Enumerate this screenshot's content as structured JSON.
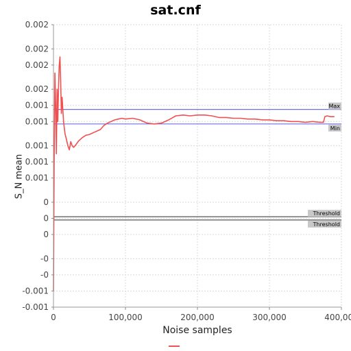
{
  "chart_data": {
    "type": "line",
    "title": "sat.cnf",
    "xlabel": "Noise samples",
    "ylabel": "S_N mean",
    "xlim": [
      0,
      400000
    ],
    "ylim": [
      -0.0011,
      0.0024
    ],
    "x_ticks": [
      0,
      100000,
      200000,
      300000,
      400000
    ],
    "x_tick_labels": [
      "0",
      "100,000",
      "200,000",
      "300,000",
      "400,000"
    ],
    "y_ticks": [
      0.0024,
      0.0021,
      0.0019,
      0.0016,
      0.0014,
      0.0012,
      0.0009,
      0.0007,
      0.0005,
      0.0002,
      0.0,
      -0.0002,
      -0.0005,
      -0.0007,
      -0.0009,
      -0.0011
    ],
    "y_tick_labels": [
      "0.002",
      "0.002",
      "0.002",
      "0.002",
      "0.001",
      "0.001",
      "0.001",
      "0.001",
      "0.001",
      "0",
      "0",
      "0",
      "-0",
      "-0",
      "-0.001",
      "-0.001"
    ],
    "reference_lines": [
      {
        "label": "Max",
        "value": 0.00135,
        "color": "#6f6fe8"
      },
      {
        "label": "Min",
        "value": 0.00117,
        "color": "#6f6fe8"
      },
      {
        "label": "Threshold",
        "value": 2e-05,
        "color": "#555555"
      },
      {
        "label": "Threshold",
        "value": -2e-05,
        "color": "#555555"
      }
    ],
    "series": [
      {
        "color": "#f05050",
        "x": [
          0,
          1000,
          2000,
          3000,
          4000,
          5000,
          6000,
          7000,
          8000,
          9000,
          10000,
          11000,
          12000,
          14000,
          16000,
          18000,
          20000,
          22000,
          24000,
          26000,
          28000,
          30000,
          35000,
          40000,
          45000,
          50000,
          55000,
          60000,
          65000,
          70000,
          75000,
          80000,
          85000,
          90000,
          95000,
          100000,
          110000,
          120000,
          130000,
          140000,
          150000,
          160000,
          170000,
          180000,
          190000,
          200000,
          210000,
          220000,
          230000,
          240000,
          250000,
          260000,
          270000,
          280000,
          290000,
          300000,
          310000,
          320000,
          330000,
          340000,
          350000,
          360000,
          370000,
          375000,
          377000,
          380000,
          385000,
          390000
        ],
        "y": [
          -0.0009,
          0.0007,
          0.0018,
          0.0014,
          0.0008,
          0.0016,
          0.0012,
          0.0016,
          0.0019,
          0.002,
          0.0017,
          0.0013,
          0.0015,
          0.0012,
          0.00105,
          0.00098,
          0.0009,
          0.00085,
          0.00095,
          0.0009,
          0.00088,
          0.0009,
          0.00096,
          0.001,
          0.00103,
          0.00104,
          0.00106,
          0.00108,
          0.0011,
          0.00115,
          0.00118,
          0.0012,
          0.00122,
          0.00123,
          0.00124,
          0.00123,
          0.00124,
          0.00122,
          0.00118,
          0.00117,
          0.00118,
          0.00122,
          0.00127,
          0.00128,
          0.00127,
          0.00128,
          0.00128,
          0.00127,
          0.00125,
          0.00125,
          0.00124,
          0.00124,
          0.00123,
          0.00123,
          0.00122,
          0.00122,
          0.00121,
          0.00121,
          0.0012,
          0.0012,
          0.00119,
          0.0012,
          0.00119,
          0.00119,
          0.00126,
          0.00127,
          0.00126,
          0.00126
        ]
      }
    ],
    "grid": true,
    "grid_style": "dashed",
    "legend": "bottom-center"
  }
}
